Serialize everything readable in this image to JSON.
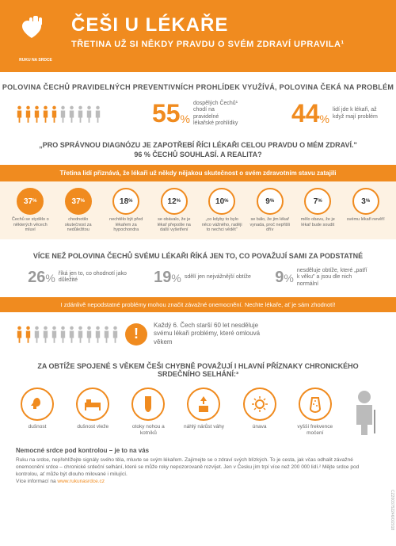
{
  "colors": {
    "orange": "#f08b1f",
    "gray": "#999",
    "lightbg": "#fdf2e3"
  },
  "header": {
    "logo_text": "RUKU NA SRDCE",
    "title": "ČEŠI U LÉKAŘE",
    "subtitle": "TŘETINA UŽ SI NĚKDY PRAVDU O SVÉM ZDRAVÍ UPRAVILA¹"
  },
  "sub1": "POLOVINA ČECHŮ PRAVIDELNÝCH PREVENTIVNÍCH PROHLÍDEK VYUŽÍVÁ, POLOVINA ČEKÁ NA PROBLÉM",
  "people1": {
    "count": 10,
    "highlight": 5,
    "color_on": "#f08b1f",
    "color_off": "#bbb"
  },
  "stat1": {
    "value": "55",
    "pct": "%",
    "desc": "dospělých Čechů¹ chodí na pravidelné lékařské prohlídky"
  },
  "stat2": {
    "value": "44",
    "pct": "%",
    "desc": "lidí jde k lékaři, až když mají problém"
  },
  "quote": "„PRO SPRÁVNOU DIAGNÓZU JE ZAPOTŘEBÍ ŘÍCI LÉKAŘI CELOU PRAVDU O MÉM ZDRAVÍ.\"",
  "quote2": "96 % ČECHŮ SOUHLASÍ. A REALITA?",
  "banner1": "Třetina lidí přiznává, že lékaři už někdy nějakou skutečnost o svém zdravotním stavu zatajili",
  "circles": [
    {
      "v": "37",
      "u": "%",
      "filled": true,
      "desc": "Čechů se stydělo o některých věcech mluví"
    },
    {
      "v": "37",
      "u": "%",
      "filled": true,
      "desc": "chodnotilo skutečnost za nedůležitou"
    },
    {
      "v": "18",
      "u": "%",
      "filled": false,
      "desc": "nechtělo být před lékařem za hypochondra"
    },
    {
      "v": "12",
      "u": "%",
      "filled": false,
      "desc": "se obávalo, že je lékař přepošle na další vyšetření"
    },
    {
      "v": "10",
      "u": "%",
      "filled": false,
      "desc": "„co kdyby to bylo něco vážného, raději to nechci vědět\""
    },
    {
      "v": "9",
      "u": "%",
      "filled": false,
      "desc": "se bálo, že jim lékař vynada, proč nepřišli dřív"
    },
    {
      "v": "7",
      "u": "%",
      "filled": false,
      "desc": "mělo obavu, že je lékař bude soudit"
    },
    {
      "v": "3",
      "u": "%",
      "filled": false,
      "desc": "svému lékaři nevěří"
    }
  ],
  "sub2": "VÍCE NEŽ POLOVINA ČECHŮ SVÉMU LÉKAŘI ŘÍKÁ JEN TO, CO POVAŽUJÍ SAMI ZA PODSTATNÉ",
  "stats2": [
    {
      "v": "26",
      "u": "%",
      "desc": "říká jen to, co ohodnotí jako důležité"
    },
    {
      "v": "19",
      "u": "%",
      "desc": "sdělí jen nejvážnější obtíže"
    },
    {
      "v": "9",
      "u": "%",
      "desc": "nesděluje obtíže, které „patří k věku\" a jsou dle nich normální"
    }
  ],
  "banner2": "I zdánlivě nepodstatné problémy mohou značit závažné onemocnění. Nechte lékaře, ať je sám zhodnotí!",
  "people2": {
    "count": 12,
    "highlight": 2,
    "color_on": "#f08b1f",
    "color_off": "#bbb"
  },
  "alert_text": "Každý 6. Čech starší 60 let nesděluje svému lékaři problémy, které omlouvá věkem",
  "sub3": "ZA OBTÍŽE SPOJENÉ S VĚKEM ČEŠI CHYBNĚ POVAŽUJÍ I HLAVNÍ PŘÍZNAKY CHRONICKÉHO SRDEČNÍHO SELHÁNÍ:³",
  "symptoms": [
    {
      "label": "dušnost"
    },
    {
      "label": "dušnost vleže"
    },
    {
      "label": "otoky nohou a kotníků"
    },
    {
      "label": "náhlý nárůst váhy"
    },
    {
      "label": "únava"
    },
    {
      "label": "vyšší frekvence močení"
    }
  ],
  "footer": {
    "title": "Nemocné srdce pod kontrolou – je to na vás",
    "body": "Ruku na srdce, nepřehlížejte signály svého těla, mluvte se svým lékařem. Zajímejte se o zdraví svých blízkých. To je cesta, jak včas odhalit závažné onemocnění srdce – chronické srdeční selhání, které se může roky nepozorovaně rozvíjet. Jen v Česku jím trpí více než 200 000 lidí.² Mějte srdce pod kontrolou, ať může být dlouho milované i milující.",
    "more": "Více informací na",
    "link": "www.rukunasrdce.cz"
  },
  "side": "CZ2003752246/0/2018"
}
